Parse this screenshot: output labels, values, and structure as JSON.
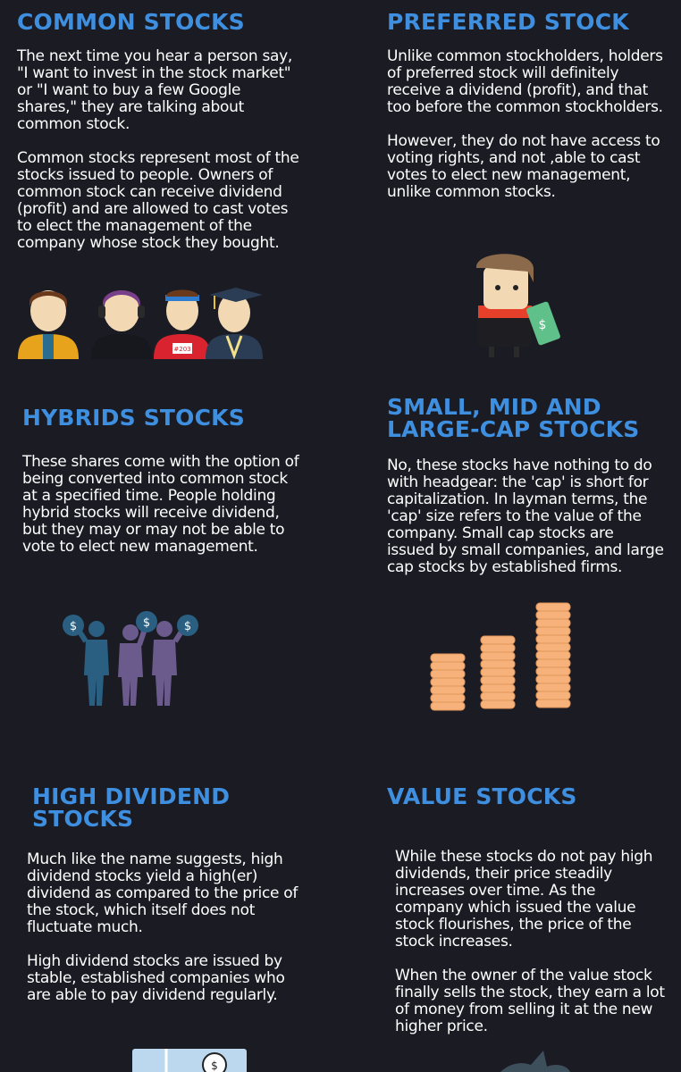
{
  "sections": [
    {
      "title": "COMMON STOCKS",
      "paragraphs": [
        "The next time you hear a person say, \"I want to invest in the stock market\" or \"I want to buy a few Google shares,\" they are talking about common stock.",
        "Common stocks represent most of the stocks issued to people. Owners of common stock can receive dividend (profit) and are allowed to cast votes to elect the management of the company whose stock they bought."
      ],
      "illustration_icon": "people-group-icon",
      "bib_number": "#203"
    },
    {
      "title": "PREFERRED STOCK",
      "paragraphs": [
        "Unlike common stockholders, holders of preferred stock will definitely receive a dividend (profit), and that too before the common stockholders.",
        "However, they do not have access to voting rights, and not ,able to cast votes to elect new management, unlike common stocks."
      ],
      "illustration_icon": "man-holding-money-icon",
      "money_symbol": "$"
    },
    {
      "title": "HYBRIDS STOCKS",
      "paragraphs": [
        "These shares come with the option of being converted into common stock at a specified time. People holding hybrid stocks will receive dividend, but they may or may not be able to vote to elect new management."
      ],
      "illustration_icon": "people-with-money-bags-icon",
      "money_symbol": "$"
    },
    {
      "title_lines": [
        "SMALL, MID AND",
        "LARGE-CAP STOCKS"
      ],
      "paragraphs": [
        "No, these stocks have nothing to do with headgear: the 'cap' is short for capitalization. In layman terms, the 'cap' size refers to the value of the company. Small cap stocks are issued by small companies, and large cap stocks by established firms."
      ],
      "illustration_icon": "coin-stacks-icon"
    },
    {
      "title_lines": [
        "HIGH DIVIDEND",
        "STOCKS"
      ],
      "paragraphs": [
        "Much like the name suggests, high dividend stocks yield a high(er) dividend as compared to the price of the stock, which itself does not fluctuate much.",
        "High dividend stocks are issued by stable, established companies who are able to pay dividend regularly."
      ],
      "illustration_icon": "money-bag-building-icon",
      "money_symbol": "$"
    },
    {
      "title": "VALUE STOCKS",
      "paragraphs": [
        "While these stocks do not pay high dividends, their price steadily increases over time. As the company which issued the value stock flourishes, the price of the stock increases.",
        "When the owner of the value stock finally sells the stock, they earn a lot of money from selling it at the new higher price."
      ],
      "illustration_icon": "growth-plant-icon"
    }
  ],
  "colors": {
    "background": "#1a1b23",
    "heading": "#3f8fe0",
    "text": "#ffffff",
    "coin": "#f6b27a"
  }
}
